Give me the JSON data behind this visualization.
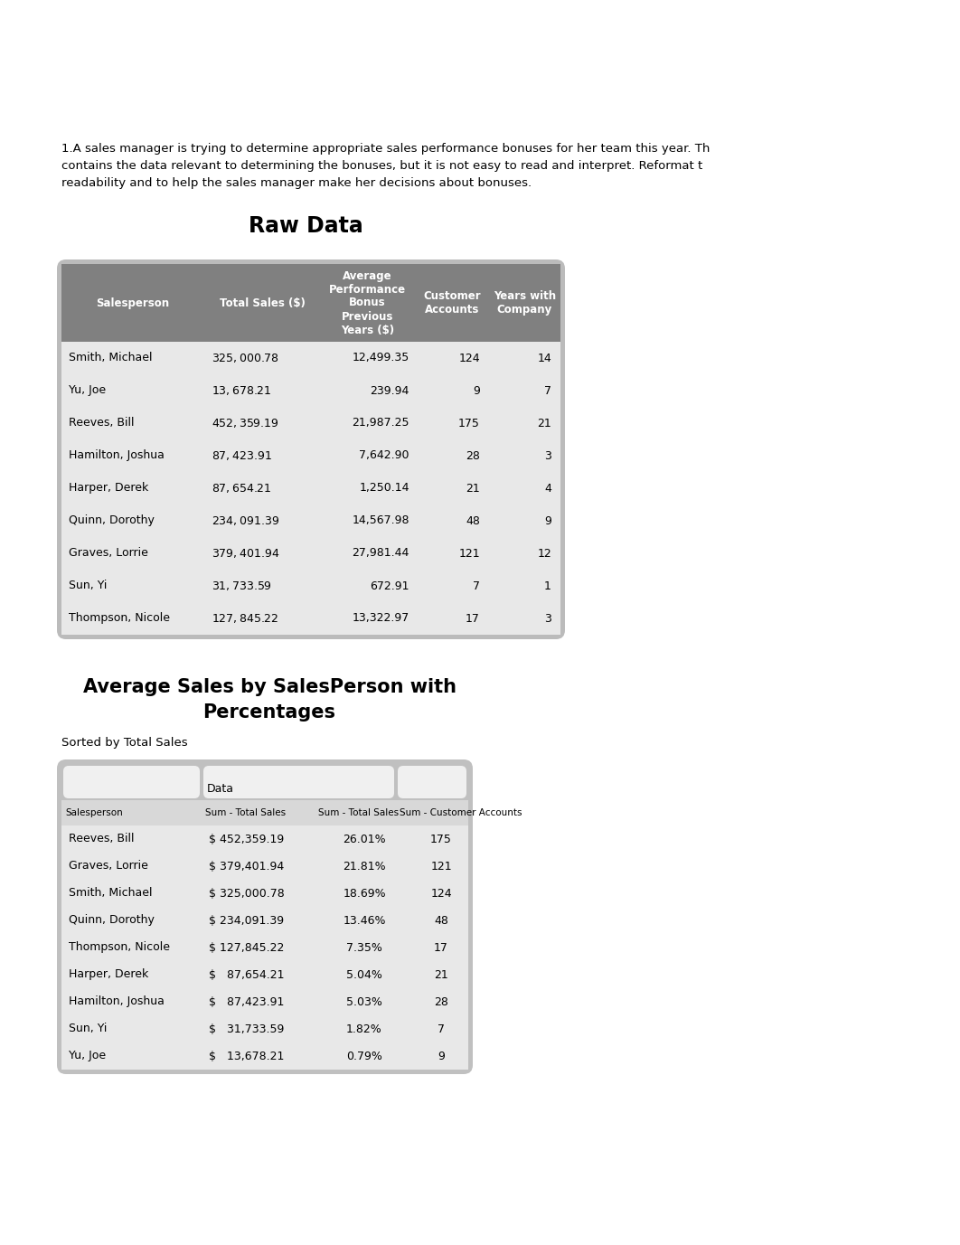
{
  "intro_text_lines": [
    "1.A sales manager is trying to determine appropriate sales performance bonuses for her team this year. Th",
    "contains the data relevant to determining the bonuses, but it is not easy to read and interpret. Reformat t",
    "readability and to help the sales manager make her decisions about bonuses."
  ],
  "raw_data_title": "Raw Data",
  "raw_headers": [
    "Salesperson",
    "Total Sales ($)",
    "Average\nPerformance\nBonus\nPrevious\nYears ($)",
    "Customer\nAccounts",
    "Years with\nCompany"
  ],
  "raw_rows": [
    [
      "Smith, Michael",
      "$ 325,000.78 $",
      "12,499.35",
      "124",
      "14"
    ],
    [
      "Yu, Joe",
      "$   13,678.21 $",
      "239.94",
      "9",
      "7"
    ],
    [
      "Reeves, Bill",
      "$ 452,359.19 $",
      "21,987.25",
      "175",
      "21"
    ],
    [
      "Hamilton, Joshua",
      "$   87,423.91 $",
      "7,642.90",
      "28",
      "3"
    ],
    [
      "Harper, Derek",
      "$   87,654.21 $",
      "1,250.14",
      "21",
      "4"
    ],
    [
      "Quinn, Dorothy",
      "$ 234,091.39 $",
      "14,567.98",
      "48",
      "9"
    ],
    [
      "Graves, Lorrie",
      "$ 379,401.94 $",
      "27,981.44",
      "121",
      "12"
    ],
    [
      "Sun, Yi",
      "$   31,733.59 $",
      "672.91",
      "7",
      "1"
    ],
    [
      "Thompson, Nicole",
      "$ 127,845.22 $",
      "13,322.97",
      "17",
      "3"
    ]
  ],
  "pivot_title_line1": "Average Sales by SalesPerson with",
  "pivot_title_line2": "Percentages",
  "pivot_subtitle": "Sorted by Total Sales",
  "pivot_headers": [
    "Salesperson",
    "Sum - Total Sales",
    "Sum - Total Sales",
    "Sum - Customer Accounts"
  ],
  "pivot_rows": [
    [
      "Reeves, Bill",
      "$ 452,359.19",
      "26.01%",
      "175"
    ],
    [
      "Graves, Lorrie",
      "$ 379,401.94",
      "21.81%",
      "121"
    ],
    [
      "Smith, Michael",
      "$ 325,000.78",
      "18.69%",
      "124"
    ],
    [
      "Quinn, Dorothy",
      "$ 234,091.39",
      "13.46%",
      "48"
    ],
    [
      "Thompson, Nicole",
      "$ 127,845.22",
      "7.35%",
      "17"
    ],
    [
      "Harper, Derek",
      "$   87,654.21",
      "5.04%",
      "21"
    ],
    [
      "Hamilton, Joshua",
      "$   87,423.91",
      "5.03%",
      "28"
    ],
    [
      "Sun, Yi",
      "$   31,733.59",
      "1.82%",
      "7"
    ],
    [
      "Yu, Joe",
      "$   13,678.21",
      "0.79%",
      "9"
    ]
  ],
  "page_bg": "#ffffff",
  "table1_outer_bg": "#bbbbbb",
  "table1_header_bg": "#808080",
  "table1_header_fg": "#ffffff",
  "table1_row_bg": "#e8e8e8",
  "table2_outer_bg": "#c0c0c0",
  "table2_header_bg": "#d8d8d8",
  "table2_top_cell_bg": "#e8e8e8",
  "table2_row_bg": "#e8e8e8"
}
